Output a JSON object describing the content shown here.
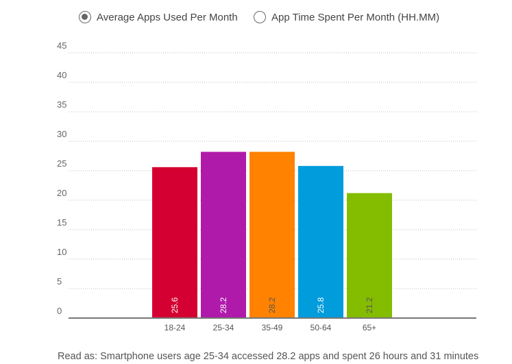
{
  "legend": {
    "option1": "Average Apps Used Per Month",
    "option2": "App Time Spent Per Month (HH.MM)",
    "selected": "Average Apps Used Per Month"
  },
  "caption": "Read as: Smartphone users age 25-34 accessed 28.2 apps and spent 26 hours and 31 minutes",
  "chart_data": {
    "type": "bar",
    "categories": [
      "18-24",
      "25-34",
      "35-49",
      "50-64",
      "65+"
    ],
    "values": [
      25.6,
      28.2,
      28.2,
      25.8,
      21.2
    ],
    "data_labels": [
      "25.6",
      "28.2",
      "28.2",
      "25.8",
      "21.2"
    ],
    "y_ticks": [
      0,
      5,
      10,
      15,
      20,
      25,
      30,
      35,
      40,
      45
    ],
    "ylim": [
      0,
      45
    ],
    "colors": [
      "#d50032",
      "#b01aaa",
      "#ff8200",
      "#009cdc",
      "#84bd00"
    ],
    "label_colors": [
      "#ffffff",
      "#ffffff",
      "#555555",
      "#ffffff",
      "#555555"
    ],
    "grid": true,
    "title": "",
    "xlabel": "",
    "ylabel": ""
  }
}
